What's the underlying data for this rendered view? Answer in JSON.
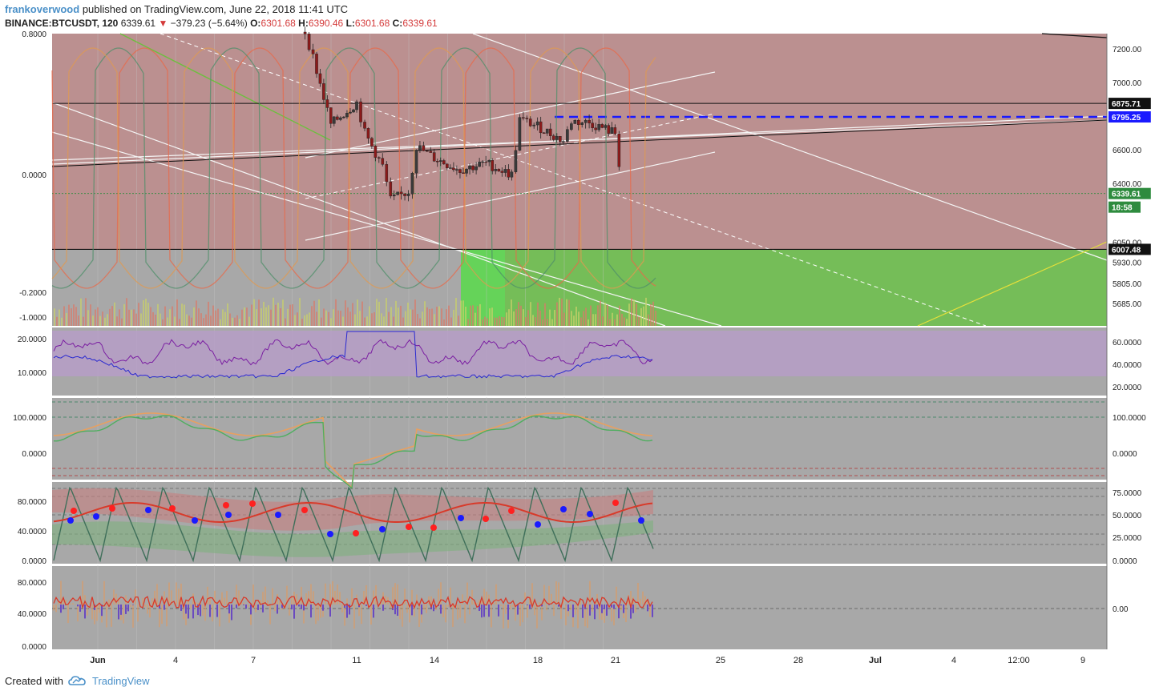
{
  "header": {
    "author": "frankoverwood",
    "published": "published on TradingView.com, June 22, 2018 11:41 UTC",
    "symbol": "BINANCE:BTCUSDT, 120",
    "last": "6339.61",
    "change": "−379.23 (−5.64%)",
    "o_label": "O:",
    "o_value": "6301.68",
    "h_label": "H:",
    "h_value": "6390.46",
    "l_label": "L:",
    "l_value": "6301.68",
    "c_label": "C:",
    "c_value": "6339.61"
  },
  "footer": {
    "created_with": "Created with",
    "brand": "TradingView"
  },
  "colors": {
    "plot_bg": "#a8a8a8",
    "red_zone": "#c98b8b",
    "green_zone": "#6fbf4f",
    "candle_up": "#3a3a3a",
    "candle_down": "#8b1a1a",
    "blue_level": "#1a1aff",
    "rsi_band": "#b69cc8",
    "rsi_line": "#7b1fa2",
    "adx_line": "#2a2ad0"
  },
  "chart_data": [
    {
      "type": "candlestick",
      "title": "BINANCE:BTCUSDT, 120",
      "y_axis_right": [
        "7200.00",
        "7000.00",
        "6600.00",
        "6400.00",
        "6050.00",
        "5930.00",
        "5805.00",
        "5685.00"
      ],
      "y_axis_left": [
        "0.8000",
        "0.0000",
        "-0.2000",
        "-1.0000"
      ],
      "x_ticks": [
        "Jun",
        "4",
        "7",
        "11",
        "14",
        "18",
        "21",
        "25",
        "28",
        "Jul",
        "4",
        "12:00",
        "9"
      ],
      "levels": [
        {
          "label": "6875.71",
          "value": 6875.71,
          "color": "#000000"
        },
        {
          "label": "6795.25",
          "value": 6795.25,
          "color": "#1a1aff"
        },
        {
          "label": "6339.61",
          "value": 6339.61,
          "color": "#2e8b3e"
        },
        {
          "label": "18:58",
          "value": 6290,
          "color": "#2e8b3e"
        },
        {
          "label": "6007.48",
          "value": 6007.48,
          "color": "#000000"
        }
      ],
      "close_path": [
        {
          "x": "Jun 10",
          "y": 7300
        },
        {
          "x": "Jun 10",
          "y": 7150
        },
        {
          "x": "Jun 11",
          "y": 6750
        },
        {
          "x": "Jun 12",
          "y": 6880
        },
        {
          "x": "Jun 12",
          "y": 6700
        },
        {
          "x": "Jun 13",
          "y": 6500
        },
        {
          "x": "Jun 13",
          "y": 6300
        },
        {
          "x": "Jun 14",
          "y": 6350
        },
        {
          "x": "Jun 14",
          "y": 6620
        },
        {
          "x": "Jun 15",
          "y": 6550
        },
        {
          "x": "Jun 16",
          "y": 6480
        },
        {
          "x": "Jun 17",
          "y": 6520
        },
        {
          "x": "Jun 18",
          "y": 6450
        },
        {
          "x": "Jun 18",
          "y": 6780
        },
        {
          "x": "Jun 19",
          "y": 6740
        },
        {
          "x": "Jun 20",
          "y": 6650
        },
        {
          "x": "Jun 20",
          "y": 6770
        },
        {
          "x": "Jun 21",
          "y": 6760
        },
        {
          "x": "Jun 22",
          "y": 6700
        },
        {
          "x": "Jun 22",
          "y": 6340
        }
      ]
    },
    {
      "type": "line",
      "name": "pane2",
      "y_axis_left": [
        "20.0000",
        "10.0000"
      ],
      "y_axis_right": [
        "60.0000",
        "40.0000",
        "20.0000"
      ]
    },
    {
      "type": "line",
      "name": "pane3",
      "y_axis_left": [
        "100.0000",
        "0.0000"
      ],
      "y_axis_right": [
        "100.0000",
        "0.0000"
      ]
    },
    {
      "type": "line",
      "name": "pane4",
      "y_axis_left": [
        "80.0000",
        "40.0000",
        "0.0000"
      ],
      "y_axis_right": [
        "75.0000",
        "50.0000",
        "25.0000",
        "0.0000"
      ]
    },
    {
      "type": "bar",
      "name": "pane5",
      "y_axis_left": [
        "80.0000",
        "40.0000",
        "0.0000"
      ],
      "y_axis_right": [
        "0.00"
      ]
    }
  ]
}
